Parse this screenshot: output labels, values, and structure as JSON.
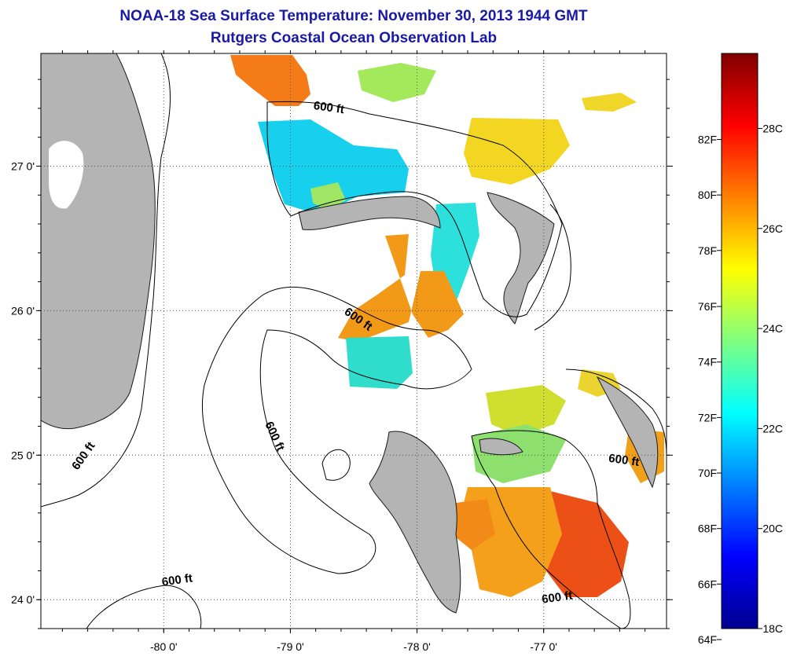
{
  "header": {
    "title": "NOAA-18 Sea Surface Temperature:  November 30, 2013 1944 GMT",
    "subtitle": "Rutgers Coastal Ocean Observation Lab"
  },
  "map": {
    "lon_ticks": [
      "-80 0'",
      "-79 0'",
      "-78 0'",
      "-77 0'"
    ],
    "lat_ticks": [
      "27 0'",
      "26 0'",
      "25 0'",
      "24 0'"
    ],
    "lon_range": [
      -80.97,
      -76.03
    ],
    "lat_range": [
      23.8,
      27.78
    ],
    "land_color": "#b4b4b4",
    "contour_labels": [
      {
        "text": "600 ft",
        "lon": -78.7,
        "lat": 27.38,
        "rot": 8
      },
      {
        "text": "600 ft",
        "lon": -78.48,
        "lat": 25.92,
        "rot": 35
      },
      {
        "text": "600 ft",
        "lon": -79.15,
        "lat": 25.12,
        "rot": 65
      },
      {
        "text": "600 ft",
        "lon": -80.61,
        "lat": 24.98,
        "rot": -55
      },
      {
        "text": "600 ft",
        "lon": -76.37,
        "lat": 24.94,
        "rot": 8
      },
      {
        "text": "600 ft",
        "lon": -79.89,
        "lat": 24.11,
        "rot": -8
      },
      {
        "text": "600 ft",
        "lon": -76.89,
        "lat": 23.99,
        "rot": -8
      }
    ]
  },
  "colorbar": {
    "colors": [
      "#00008f",
      "#0000ff",
      "#0080ff",
      "#00ffff",
      "#80ff80",
      "#ffff00",
      "#ff8000",
      "#ff0000",
      "#800000"
    ],
    "range_c": [
      18,
      29.5
    ],
    "labels_f": [
      {
        "label": "82F",
        "c": 27.78
      },
      {
        "label": "80F",
        "c": 26.67
      },
      {
        "label": "78F",
        "c": 25.56
      },
      {
        "label": "76F",
        "c": 24.44
      },
      {
        "label": "74F",
        "c": 23.33
      },
      {
        "label": "72F",
        "c": 22.22
      },
      {
        "label": "70F",
        "c": 21.11
      },
      {
        "label": "68F",
        "c": 20.0
      },
      {
        "label": "66F",
        "c": 18.89
      },
      {
        "label": "64F",
        "c": 17.78
      }
    ],
    "labels_c": [
      {
        "label": "28C",
        "c": 28
      },
      {
        "label": "26C",
        "c": 26
      },
      {
        "label": "24C",
        "c": 24
      },
      {
        "label": "22C",
        "c": 22
      },
      {
        "label": "20C",
        "c": 20
      },
      {
        "label": "18C",
        "c": 18
      }
    ]
  }
}
